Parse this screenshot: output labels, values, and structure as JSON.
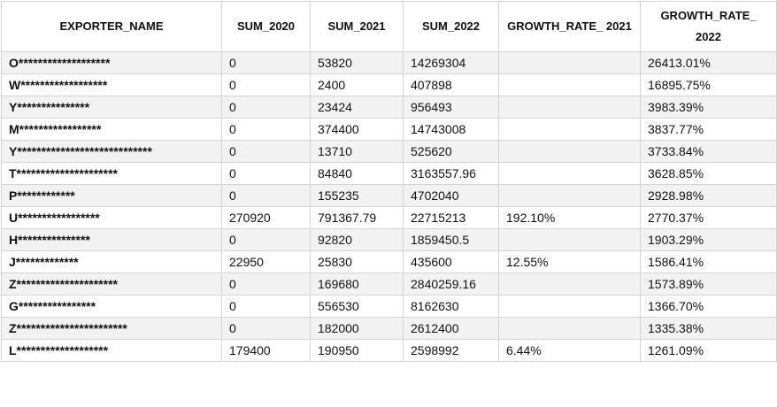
{
  "table": {
    "header": [
      "EXPORTER_NAME",
      "SUM_2020",
      "SUM_2021",
      "SUM_2022",
      "GROWTH_RATE_ 2021",
      "GROWTH_RATE_ 2022"
    ],
    "rows": [
      [
        "O*******************",
        0,
        53820,
        14269304,
        null,
        "26413.01%"
      ],
      [
        "W******************",
        0,
        2400,
        407898,
        null,
        "16895.75%"
      ],
      [
        "Y***************",
        0,
        23424,
        956493,
        null,
        "3983.39%"
      ],
      [
        "M*****************",
        0,
        374400,
        14743008,
        null,
        "3837.77%"
      ],
      [
        "Y****************************",
        0,
        13710,
        525620,
        null,
        "3733.84%"
      ],
      [
        "T*********************",
        0,
        84840,
        3163557.96,
        null,
        "3628.85%"
      ],
      [
        "P************",
        0,
        155235,
        4702040,
        null,
        "2928.98%"
      ],
      [
        "U*****************",
        270920,
        791367.79,
        22715213,
        "192.10%",
        "2770.37%"
      ],
      [
        "H***************",
        0,
        92820,
        1859450.5,
        null,
        "1903.29%"
      ],
      [
        "J*************",
        22950,
        25830,
        435600,
        "12.55%",
        "1586.41%"
      ],
      [
        "Z*********************",
        0,
        169680,
        2840259.16,
        null,
        "1573.89%"
      ],
      [
        "G****************",
        0,
        556530,
        8162630,
        null,
        "1366.70%"
      ],
      [
        "Z***********************",
        0,
        182000,
        2612400,
        null,
        "1335.38%"
      ],
      [
        "L*******************",
        179400,
        190950,
        2598992,
        "6.44%",
        "1261.09%"
      ]
    ]
  }
}
